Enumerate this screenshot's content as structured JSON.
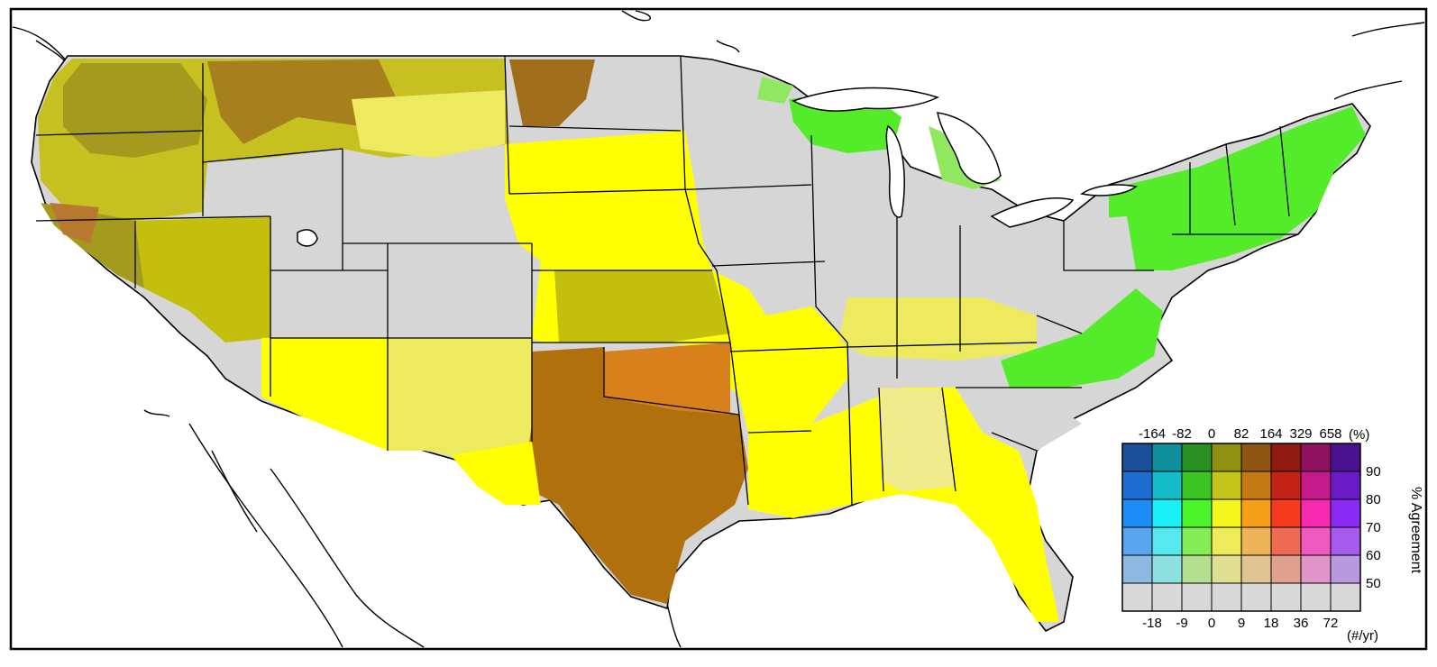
{
  "legend": {
    "top_labels": [
      "-164",
      "-82",
      "0",
      "82",
      "164",
      "329",
      "658"
    ],
    "top_unit": "(%)",
    "bottom_labels": [
      "-18",
      "-9",
      "0",
      "9",
      "18",
      "36",
      "72"
    ],
    "bottom_unit": "(#/yr)",
    "agreement_label": "% Agreement",
    "agreement_ticks": [
      "90",
      "80",
      "70",
      "60",
      "50"
    ],
    "colors": [
      [
        "#1c4f9a",
        "#0f8f9a",
        "#2a8f22",
        "#8f8f12",
        "#8f5512",
        "#8f1a12",
        "#8f1260",
        "#4b1290"
      ],
      [
        "#1f6dd1",
        "#13bcc6",
        "#3bc424",
        "#c4c41a",
        "#c47a14",
        "#c42418",
        "#c41a8c",
        "#6a1ac4"
      ],
      [
        "#1e8cf5",
        "#1af0f5",
        "#4cf52a",
        "#f5f51e",
        "#f5a018",
        "#f53a1e",
        "#f52ab0",
        "#8a2af5"
      ],
      [
        "#5aa3ee",
        "#55e8ee",
        "#85ec55",
        "#eeea5a",
        "#eeb45a",
        "#ee6a55",
        "#ee5ac0",
        "#a65aee"
      ],
      [
        "#8fb8e0",
        "#8edfe0",
        "#b3df8f",
        "#e0de93",
        "#e0c493",
        "#e0a08f",
        "#e094c8",
        "#b899e0"
      ],
      [
        "#d8d8d8",
        "#d8d8d8",
        "#d8d8d8",
        "#d8d8d8",
        "#d8d8d8",
        "#d8d8d8",
        "#d8d8d8",
        "#d8d8d8"
      ]
    ]
  },
  "map_colors": {
    "no_agreement": "#d6d6d6",
    "dark_olive": "#a39a1e",
    "olive": "#c4bf0c",
    "bright_yellow": "#ffff00",
    "light_yellow": "#eeea60",
    "pale_yellow": "#f0ec8e",
    "orange": "#d8801c",
    "brown": "#b0700e",
    "green": "#54ec2a",
    "light_green": "#90e860",
    "water": "#ffffff"
  }
}
